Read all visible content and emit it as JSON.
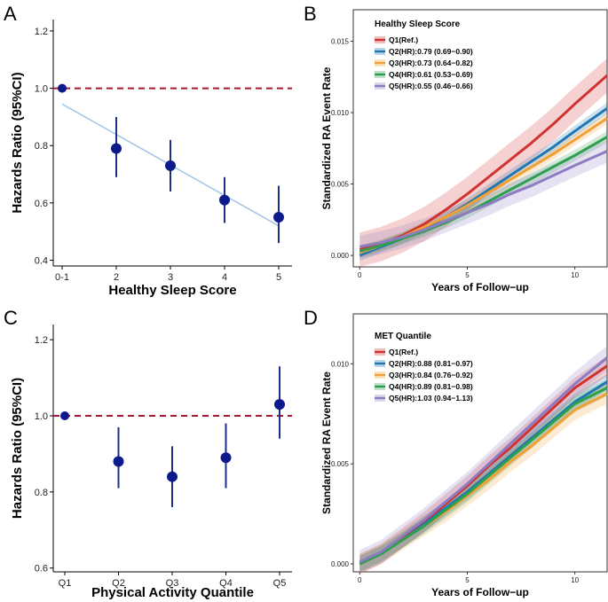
{
  "chart_data": [
    {
      "panel": "A",
      "type": "scatter",
      "xlabel": "Healthy Sleep Score",
      "ylabel": "Hazards Ratio (95%CI)",
      "categories": [
        "0-1",
        "2",
        "3",
        "4",
        "5"
      ],
      "estimates": [
        1.0,
        0.79,
        0.73,
        0.61,
        0.55
      ],
      "lower": [
        1.0,
        0.69,
        0.64,
        0.53,
        0.46
      ],
      "upper": [
        1.0,
        0.9,
        0.82,
        0.69,
        0.66
      ],
      "ylim": [
        0.38,
        1.24
      ],
      "yticks": [
        "0.4",
        "0.6",
        "0.8",
        "1.0",
        "1.2"
      ],
      "reference_line": 1.0,
      "trend_line": {
        "from": 0.945,
        "to": 0.52
      }
    },
    {
      "panel": "B",
      "type": "line",
      "xlabel": "Years of Follow−up",
      "ylabel": "Standardized RA Event Rate",
      "legend_title": "Healthy Sleep Score",
      "xlim": [
        -0.3,
        11.5
      ],
      "ylim": [
        -0.0008,
        0.0172
      ],
      "xticks": [
        "0",
        "5",
        "10"
      ],
      "yticks": [
        "0.000",
        "0.005",
        "0.010",
        "0.015"
      ],
      "series": [
        {
          "name": "Q1(Ref.)",
          "color": "#d1322f",
          "x": [
            0,
            1,
            2,
            3,
            4,
            5,
            6,
            7,
            8,
            9,
            10,
            11.5
          ],
          "y": [
            0.0004,
            0.0008,
            0.0014,
            0.0022,
            0.0032,
            0.0043,
            0.0055,
            0.0067,
            0.0079,
            0.0092,
            0.0106,
            0.0126
          ],
          "band": 0.0012
        },
        {
          "name": "Q2(HR):0.79 (0.69−0.90)",
          "color": "#1f78b4",
          "x": [
            0,
            1,
            2,
            3,
            4,
            5,
            6,
            7,
            8,
            9,
            10,
            11.5
          ],
          "y": [
            0.0,
            0.0006,
            0.0012,
            0.0019,
            0.0027,
            0.0036,
            0.0046,
            0.0056,
            0.0066,
            0.0076,
            0.0087,
            0.0103
          ],
          "band": 0.0004
        },
        {
          "name": "Q3(HR):0.73 (0.64−0.82)",
          "color": "#f0a034",
          "x": [
            0,
            1,
            2,
            3,
            4,
            5,
            6,
            7,
            8,
            9,
            10,
            11.5
          ],
          "y": [
            0.0002,
            0.0007,
            0.0013,
            0.002,
            0.0027,
            0.0035,
            0.0044,
            0.0053,
            0.0062,
            0.0071,
            0.0081,
            0.0096
          ],
          "band": 0.0004
        },
        {
          "name": "Q4(HR):0.61 (0.53−0.69)",
          "color": "#2e9e4f",
          "x": [
            0,
            1,
            2,
            3,
            4,
            5,
            6,
            7,
            8,
            9,
            10,
            11.5
          ],
          "y": [
            0.0003,
            0.0007,
            0.0012,
            0.0017,
            0.0023,
            0.003,
            0.0038,
            0.0046,
            0.0054,
            0.0062,
            0.007,
            0.0083
          ],
          "band": 0.0004
        },
        {
          "name": "Q5(HR):0.55 (0.46−0.66)",
          "color": "#8e7cc3",
          "x": [
            0,
            1,
            2,
            3,
            4,
            5,
            6,
            7,
            8,
            9,
            10,
            11.5
          ],
          "y": [
            0.0006,
            0.0009,
            0.0013,
            0.0018,
            0.0024,
            0.003,
            0.0036,
            0.0043,
            0.0049,
            0.0056,
            0.0063,
            0.0073
          ],
          "band": 0.0008
        }
      ]
    },
    {
      "panel": "C",
      "type": "scatter",
      "xlabel": "Physical Activity Quantile",
      "ylabel": "Hazards Ratio (95%CI)",
      "categories": [
        "Q1",
        "Q2",
        "Q3",
        "Q4",
        "Q5"
      ],
      "estimates": [
        1.0,
        0.88,
        0.84,
        0.89,
        1.03
      ],
      "lower": [
        1.0,
        0.81,
        0.76,
        0.81,
        0.94
      ],
      "upper": [
        1.0,
        0.97,
        0.92,
        0.98,
        1.13
      ],
      "ylim": [
        0.59,
        1.24
      ],
      "yticks": [
        "0.6",
        "0.8",
        "1.0",
        "1.2"
      ],
      "reference_line": 1.0
    },
    {
      "panel": "D",
      "type": "line",
      "xlabel": "Years of Follow−up",
      "ylabel": "Standardized RA Event Rate",
      "legend_title": "MET Quantile",
      "xlim": [
        -0.3,
        11.5
      ],
      "ylim": [
        -0.0004,
        0.0125
      ],
      "xticks": [
        "0",
        "5",
        "10"
      ],
      "yticks": [
        "0.000",
        "0.005",
        "0.010"
      ],
      "series": [
        {
          "name": "Q1(Ref.)",
          "color": "#d1322f",
          "x": [
            0,
            1,
            2,
            3,
            4,
            5,
            6,
            7,
            8,
            9,
            10,
            11.5
          ],
          "y": [
            0.0,
            0.0005,
            0.0013,
            0.0021,
            0.003,
            0.0039,
            0.0049,
            0.0058,
            0.0068,
            0.0078,
            0.0088,
            0.0099
          ],
          "band": 0.0005
        },
        {
          "name": "Q2(HR):0.88 (0.81−0.97)",
          "color": "#1f78b4",
          "x": [
            0,
            1,
            2,
            3,
            4,
            5,
            6,
            7,
            8,
            9,
            10,
            11.5
          ],
          "y": [
            0.0,
            0.0005,
            0.0012,
            0.002,
            0.0028,
            0.0036,
            0.0045,
            0.0054,
            0.0063,
            0.0072,
            0.0081,
            0.0091
          ],
          "band": 0.0004
        },
        {
          "name": "Q3(HR):0.84 (0.76−0.92)",
          "color": "#f0a034",
          "x": [
            0,
            1,
            2,
            3,
            4,
            5,
            6,
            7,
            8,
            9,
            10,
            11.5
          ],
          "y": [
            0.0,
            0.0005,
            0.0012,
            0.0019,
            0.0026,
            0.0034,
            0.0042,
            0.0051,
            0.0059,
            0.0068,
            0.0077,
            0.0085
          ],
          "band": 0.0005
        },
        {
          "name": "Q4(HR):0.89 (0.81−0.98)",
          "color": "#2e9e4f",
          "x": [
            0,
            1,
            2,
            3,
            4,
            5,
            6,
            7,
            8,
            9,
            10,
            11.5
          ],
          "y": [
            0.0,
            0.0005,
            0.0012,
            0.0019,
            0.0027,
            0.0035,
            0.0044,
            0.0053,
            0.0062,
            0.0071,
            0.008,
            0.0088
          ],
          "band": 0.0004
        },
        {
          "name": "Q5(HR):1.03 (0.94−1.13)",
          "color": "#8e7cc3",
          "x": [
            0,
            1,
            2,
            3,
            4,
            5,
            6,
            7,
            8,
            9,
            10,
            11.5
          ],
          "y": [
            0.0001,
            0.0006,
            0.0014,
            0.0022,
            0.0031,
            0.004,
            0.005,
            0.006,
            0.007,
            0.008,
            0.009,
            0.0103
          ],
          "band": 0.0006
        }
      ]
    }
  ],
  "panel_letters": [
    "A",
    "B",
    "C",
    "D"
  ]
}
